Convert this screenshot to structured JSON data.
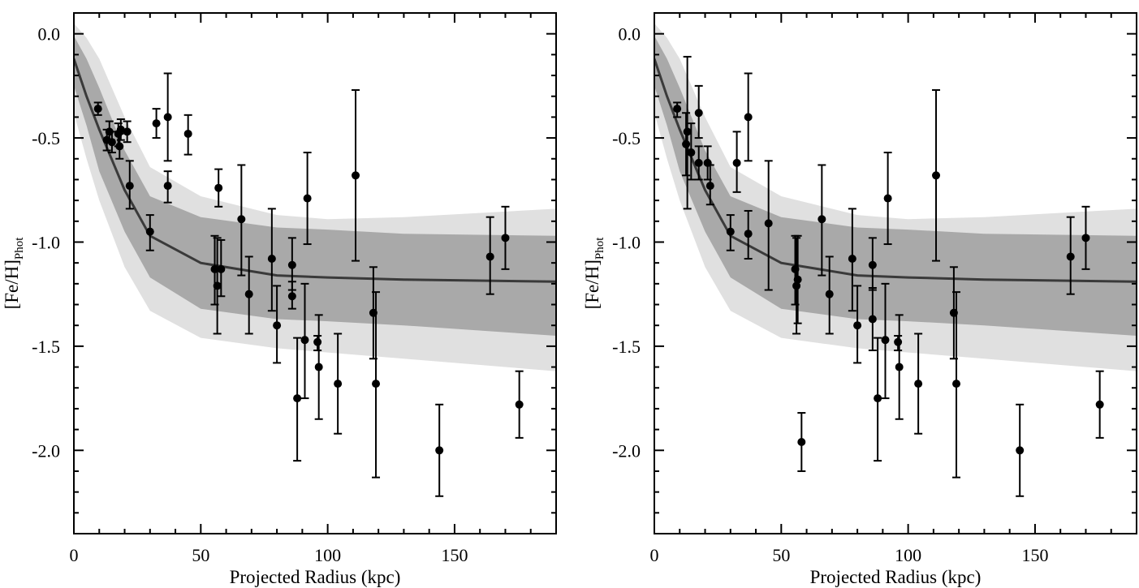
{
  "chart_data": [
    {
      "type": "scatter",
      "panel": "left",
      "xlabel": "Projected Radius (kpc)",
      "ylabel_main": "[Fe/H]",
      "ylabel_sub": "Phot",
      "xlim": [
        0,
        190
      ],
      "ylim": [
        -2.4,
        0.1
      ],
      "x_ticks": [
        0,
        50,
        100,
        150
      ],
      "x_tick_labels": [
        "0",
        "50",
        "100",
        "150"
      ],
      "y_ticks": [
        0.0,
        -0.5,
        -1.0,
        -1.5,
        -2.0
      ],
      "y_tick_labels": [
        "0.0",
        "-0.5",
        "-1.0",
        "-1.5",
        "-2.0"
      ],
      "model": {
        "x": [
          0,
          5,
          10,
          20,
          30,
          50,
          80,
          100,
          130,
          190
        ],
        "mean": [
          -0.12,
          -0.3,
          -0.46,
          -0.75,
          -0.97,
          -1.1,
          -1.16,
          -1.17,
          -1.18,
          -1.19
        ],
        "inner_upper": [
          -0.01,
          -0.12,
          -0.26,
          -0.56,
          -0.78,
          -0.88,
          -0.93,
          -0.94,
          -0.96,
          -0.97
        ],
        "inner_lower": [
          -0.25,
          -0.44,
          -0.66,
          -0.95,
          -1.17,
          -1.32,
          -1.37,
          -1.38,
          -1.4,
          -1.45
        ],
        "outer_upper": [
          0.05,
          -0.02,
          -0.12,
          -0.4,
          -0.64,
          -0.78,
          -0.87,
          -0.89,
          -0.88,
          -0.84
        ],
        "outer_lower": [
          -0.38,
          -0.6,
          -0.8,
          -1.12,
          -1.33,
          -1.46,
          -1.51,
          -1.53,
          -1.56,
          -1.62
        ]
      },
      "points": [
        {
          "x": 9.5,
          "y": -0.36,
          "lo": -0.39,
          "hi": -0.33
        },
        {
          "x": 13.0,
          "y": -0.51,
          "lo": -0.56,
          "hi": -0.46
        },
        {
          "x": 14.0,
          "y": -0.47,
          "lo": -0.52,
          "hi": -0.42
        },
        {
          "x": 15.0,
          "y": -0.52,
          "lo": -0.57,
          "hi": -0.47
        },
        {
          "x": 17.5,
          "y": -0.48,
          "lo": -0.54,
          "hi": -0.43
        },
        {
          "x": 18.0,
          "y": -0.54,
          "lo": -0.6,
          "hi": -0.48
        },
        {
          "x": 18.5,
          "y": -0.46,
          "lo": -0.51,
          "hi": -0.41
        },
        {
          "x": 21.0,
          "y": -0.47,
          "lo": -0.52,
          "hi": -0.42
        },
        {
          "x": 22.0,
          "y": -0.73,
          "lo": -0.84,
          "hi": -0.61
        },
        {
          "x": 30.0,
          "y": -0.95,
          "lo": -1.04,
          "hi": -0.87
        },
        {
          "x": 32.5,
          "y": -0.43,
          "lo": -0.5,
          "hi": -0.36
        },
        {
          "x": 37.0,
          "y": -0.4,
          "lo": -0.61,
          "hi": -0.19
        },
        {
          "x": 37.0,
          "y": -0.73,
          "lo": -0.81,
          "hi": -0.66
        },
        {
          "x": 45.0,
          "y": -0.48,
          "lo": -0.58,
          "hi": -0.39
        },
        {
          "x": 55.5,
          "y": -1.13,
          "lo": -1.3,
          "hi": -0.97
        },
        {
          "x": 56.5,
          "y": -1.21,
          "lo": -1.44,
          "hi": -0.98
        },
        {
          "x": 57.0,
          "y": -0.74,
          "lo": -0.83,
          "hi": -0.65
        },
        {
          "x": 58.0,
          "y": -1.13,
          "lo": -1.26,
          "hi": -0.99
        },
        {
          "x": 66.0,
          "y": -0.89,
          "lo": -1.16,
          "hi": -0.63
        },
        {
          "x": 69.0,
          "y": -1.25,
          "lo": -1.44,
          "hi": -1.07
        },
        {
          "x": 78.0,
          "y": -1.08,
          "lo": -1.33,
          "hi": -0.84
        },
        {
          "x": 80.0,
          "y": -1.4,
          "lo": -1.58,
          "hi": -1.21
        },
        {
          "x": 86.0,
          "y": -1.11,
          "lo": -1.23,
          "hi": -0.98
        },
        {
          "x": 86.0,
          "y": -1.26,
          "lo": -1.32,
          "hi": -1.19
        },
        {
          "x": 88.0,
          "y": -1.75,
          "lo": -2.05,
          "hi": -1.46
        },
        {
          "x": 92.0,
          "y": -0.79,
          "lo": -1.01,
          "hi": -0.57
        },
        {
          "x": 91.0,
          "y": -1.47,
          "lo": -1.75,
          "hi": -1.2
        },
        {
          "x": 96.0,
          "y": -1.48,
          "lo": -1.52,
          "hi": -1.45
        },
        {
          "x": 96.5,
          "y": -1.6,
          "lo": -1.85,
          "hi": -1.35
        },
        {
          "x": 104.0,
          "y": -1.68,
          "lo": -1.92,
          "hi": -1.44
        },
        {
          "x": 111.0,
          "y": -0.68,
          "lo": -1.09,
          "hi": -0.27
        },
        {
          "x": 118.0,
          "y": -1.34,
          "lo": -1.56,
          "hi": -1.12
        },
        {
          "x": 119.0,
          "y": -1.68,
          "lo": -2.13,
          "hi": -1.24
        },
        {
          "x": 144.0,
          "y": -2.0,
          "lo": -2.22,
          "hi": -1.78
        },
        {
          "x": 164.0,
          "y": -1.07,
          "lo": -1.25,
          "hi": -0.88
        },
        {
          "x": 170.0,
          "y": -0.98,
          "lo": -1.13,
          "hi": -0.83
        },
        {
          "x": 175.5,
          "y": -1.78,
          "lo": -1.94,
          "hi": -1.62
        }
      ]
    },
    {
      "type": "scatter",
      "panel": "right",
      "xlabel": "Projected Radius (kpc)",
      "ylabel_main": "[Fe/H]",
      "ylabel_sub": "Phot",
      "xlim": [
        0,
        190
      ],
      "ylim": [
        -2.4,
        0.1
      ],
      "x_ticks": [
        0,
        50,
        100,
        150
      ],
      "x_tick_labels": [
        "0",
        "50",
        "100",
        "150"
      ],
      "y_ticks": [
        0.0,
        -0.5,
        -1.0,
        -1.5,
        -2.0
      ],
      "y_tick_labels": [
        "0.0",
        "-0.5",
        "-1.0",
        "-1.5",
        "-2.0"
      ],
      "model": {
        "x": [
          0,
          5,
          10,
          20,
          30,
          50,
          80,
          100,
          130,
          190
        ],
        "mean": [
          -0.12,
          -0.3,
          -0.46,
          -0.75,
          -0.97,
          -1.1,
          -1.16,
          -1.17,
          -1.18,
          -1.19
        ],
        "inner_upper": [
          -0.01,
          -0.12,
          -0.26,
          -0.56,
          -0.78,
          -0.88,
          -0.93,
          -0.94,
          -0.96,
          -0.97
        ],
        "inner_lower": [
          -0.25,
          -0.44,
          -0.66,
          -0.95,
          -1.17,
          -1.32,
          -1.37,
          -1.38,
          -1.4,
          -1.45
        ],
        "outer_upper": [
          0.05,
          -0.02,
          -0.12,
          -0.4,
          -0.64,
          -0.78,
          -0.87,
          -0.89,
          -0.88,
          -0.84
        ],
        "outer_lower": [
          -0.38,
          -0.6,
          -0.8,
          -1.12,
          -1.33,
          -1.46,
          -1.51,
          -1.53,
          -1.56,
          -1.62
        ]
      },
      "points": [
        {
          "x": 9.0,
          "y": -0.36,
          "lo": -0.4,
          "hi": -0.33
        },
        {
          "x": 12.5,
          "y": -0.53,
          "lo": -0.68,
          "hi": -0.38
        },
        {
          "x": 13.0,
          "y": -0.47,
          "lo": -0.84,
          "hi": -0.11
        },
        {
          "x": 14.5,
          "y": -0.57,
          "lo": -0.7,
          "hi": -0.43
        },
        {
          "x": 17.5,
          "y": -0.38,
          "lo": -0.5,
          "hi": -0.25
        },
        {
          "x": 17.5,
          "y": -0.62,
          "lo": -0.7,
          "hi": -0.54
        },
        {
          "x": 21.0,
          "y": -0.62,
          "lo": -0.7,
          "hi": -0.54
        },
        {
          "x": 22.0,
          "y": -0.73,
          "lo": -0.82,
          "hi": -0.63
        },
        {
          "x": 30.0,
          "y": -0.95,
          "lo": -1.04,
          "hi": -0.87
        },
        {
          "x": 32.5,
          "y": -0.62,
          "lo": -0.76,
          "hi": -0.47
        },
        {
          "x": 37.0,
          "y": -0.4,
          "lo": -0.61,
          "hi": -0.19
        },
        {
          "x": 37.0,
          "y": -0.96,
          "lo": -1.08,
          "hi": -0.85
        },
        {
          "x": 45.0,
          "y": -0.91,
          "lo": -1.23,
          "hi": -0.61
        },
        {
          "x": 55.5,
          "y": -1.13,
          "lo": -1.3,
          "hi": -0.97
        },
        {
          "x": 56.0,
          "y": -1.21,
          "lo": -1.44,
          "hi": -0.98
        },
        {
          "x": 56.5,
          "y": -1.18,
          "lo": -1.39,
          "hi": -0.97
        },
        {
          "x": 58.0,
          "y": -1.96,
          "lo": -2.1,
          "hi": -1.82
        },
        {
          "x": 66.0,
          "y": -0.89,
          "lo": -1.16,
          "hi": -0.63
        },
        {
          "x": 69.0,
          "y": -1.25,
          "lo": -1.44,
          "hi": -1.07
        },
        {
          "x": 78.0,
          "y": -1.08,
          "lo": -1.33,
          "hi": -0.84
        },
        {
          "x": 80.0,
          "y": -1.4,
          "lo": -1.58,
          "hi": -1.21
        },
        {
          "x": 86.0,
          "y": -1.11,
          "lo": -1.23,
          "hi": -0.98
        },
        {
          "x": 86.0,
          "y": -1.37,
          "lo": -1.52,
          "hi": -1.22
        },
        {
          "x": 88.0,
          "y": -1.75,
          "lo": -2.05,
          "hi": -1.46
        },
        {
          "x": 91.0,
          "y": -1.47,
          "lo": -1.75,
          "hi": -1.2
        },
        {
          "x": 92.0,
          "y": -0.79,
          "lo": -1.01,
          "hi": -0.57
        },
        {
          "x": 96.0,
          "y": -1.48,
          "lo": -1.52,
          "hi": -1.45
        },
        {
          "x": 96.5,
          "y": -1.6,
          "lo": -1.85,
          "hi": -1.35
        },
        {
          "x": 104.0,
          "y": -1.68,
          "lo": -1.92,
          "hi": -1.44
        },
        {
          "x": 111.0,
          "y": -0.68,
          "lo": -1.09,
          "hi": -0.27
        },
        {
          "x": 118.0,
          "y": -1.34,
          "lo": -1.56,
          "hi": -1.12
        },
        {
          "x": 119.0,
          "y": -1.68,
          "lo": -2.13,
          "hi": -1.24
        },
        {
          "x": 144.0,
          "y": -2.0,
          "lo": -2.22,
          "hi": -1.78
        },
        {
          "x": 164.0,
          "y": -1.07,
          "lo": -1.25,
          "hi": -0.88
        },
        {
          "x": 170.0,
          "y": -0.98,
          "lo": -1.13,
          "hi": -0.83
        },
        {
          "x": 175.5,
          "y": -1.78,
          "lo": -1.94,
          "hi": -1.62
        }
      ]
    }
  ],
  "colors": {
    "outer_band": "#e0e0e0",
    "inner_band": "#a9a9a9",
    "model_line": "#3a3a3a",
    "points": "#000000",
    "axes": "#000000"
  }
}
